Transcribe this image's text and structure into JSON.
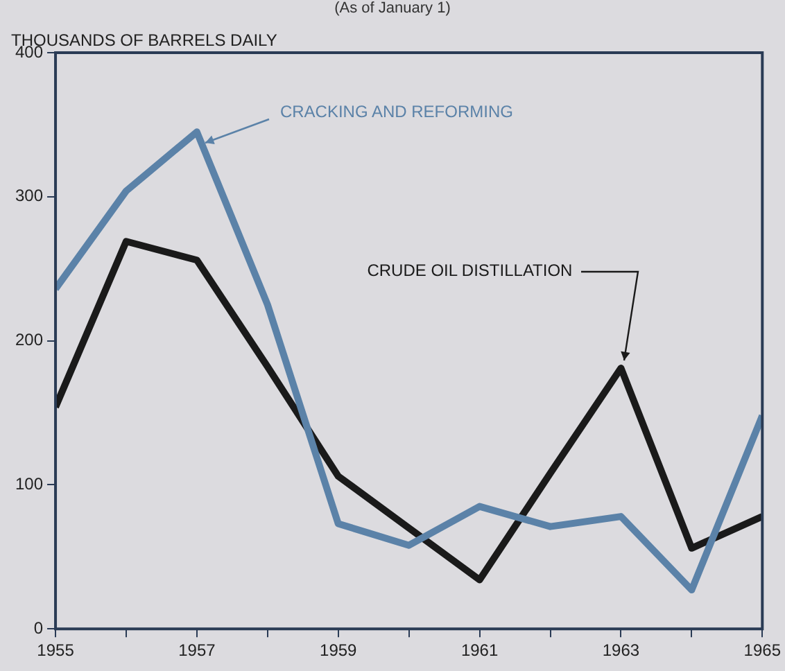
{
  "chart_data": {
    "type": "line",
    "subtitle": "(As of January 1)",
    "ylabel": "THOUSANDS OF BARRELS DAILY",
    "x": [
      1955,
      1956,
      1957,
      1958,
      1959,
      1960,
      1961,
      1962,
      1963,
      1964,
      1965
    ],
    "xlim": [
      1955,
      1965
    ],
    "xticks": [
      1955,
      {
        "value": 1956,
        "label": null
      },
      1957,
      {
        "value": 1958,
        "label": null
      },
      1959,
      {
        "value": 1960,
        "label": null
      },
      1961,
      {
        "value": 1962,
        "label": null
      },
      1963,
      {
        "value": 1964,
        "label": null
      },
      1965
    ],
    "ylim": [
      0,
      400
    ],
    "yticks": [
      0,
      100,
      200,
      300,
      400
    ],
    "grid": false,
    "legend": false,
    "marker": "none",
    "line_style": "solid",
    "series": [
      {
        "name": "CRACKING AND REFORMING",
        "color": "#5b82a8",
        "values": [
          236,
          304,
          345,
          225,
          73,
          58,
          85,
          71,
          78,
          27,
          148
        ]
      },
      {
        "name": "CRUDE OIL DISTILLATION",
        "color": "#1a1a1a",
        "values": [
          154,
          269,
          256,
          182,
          106,
          70,
          34,
          108,
          181,
          56,
          78
        ]
      }
    ]
  }
}
